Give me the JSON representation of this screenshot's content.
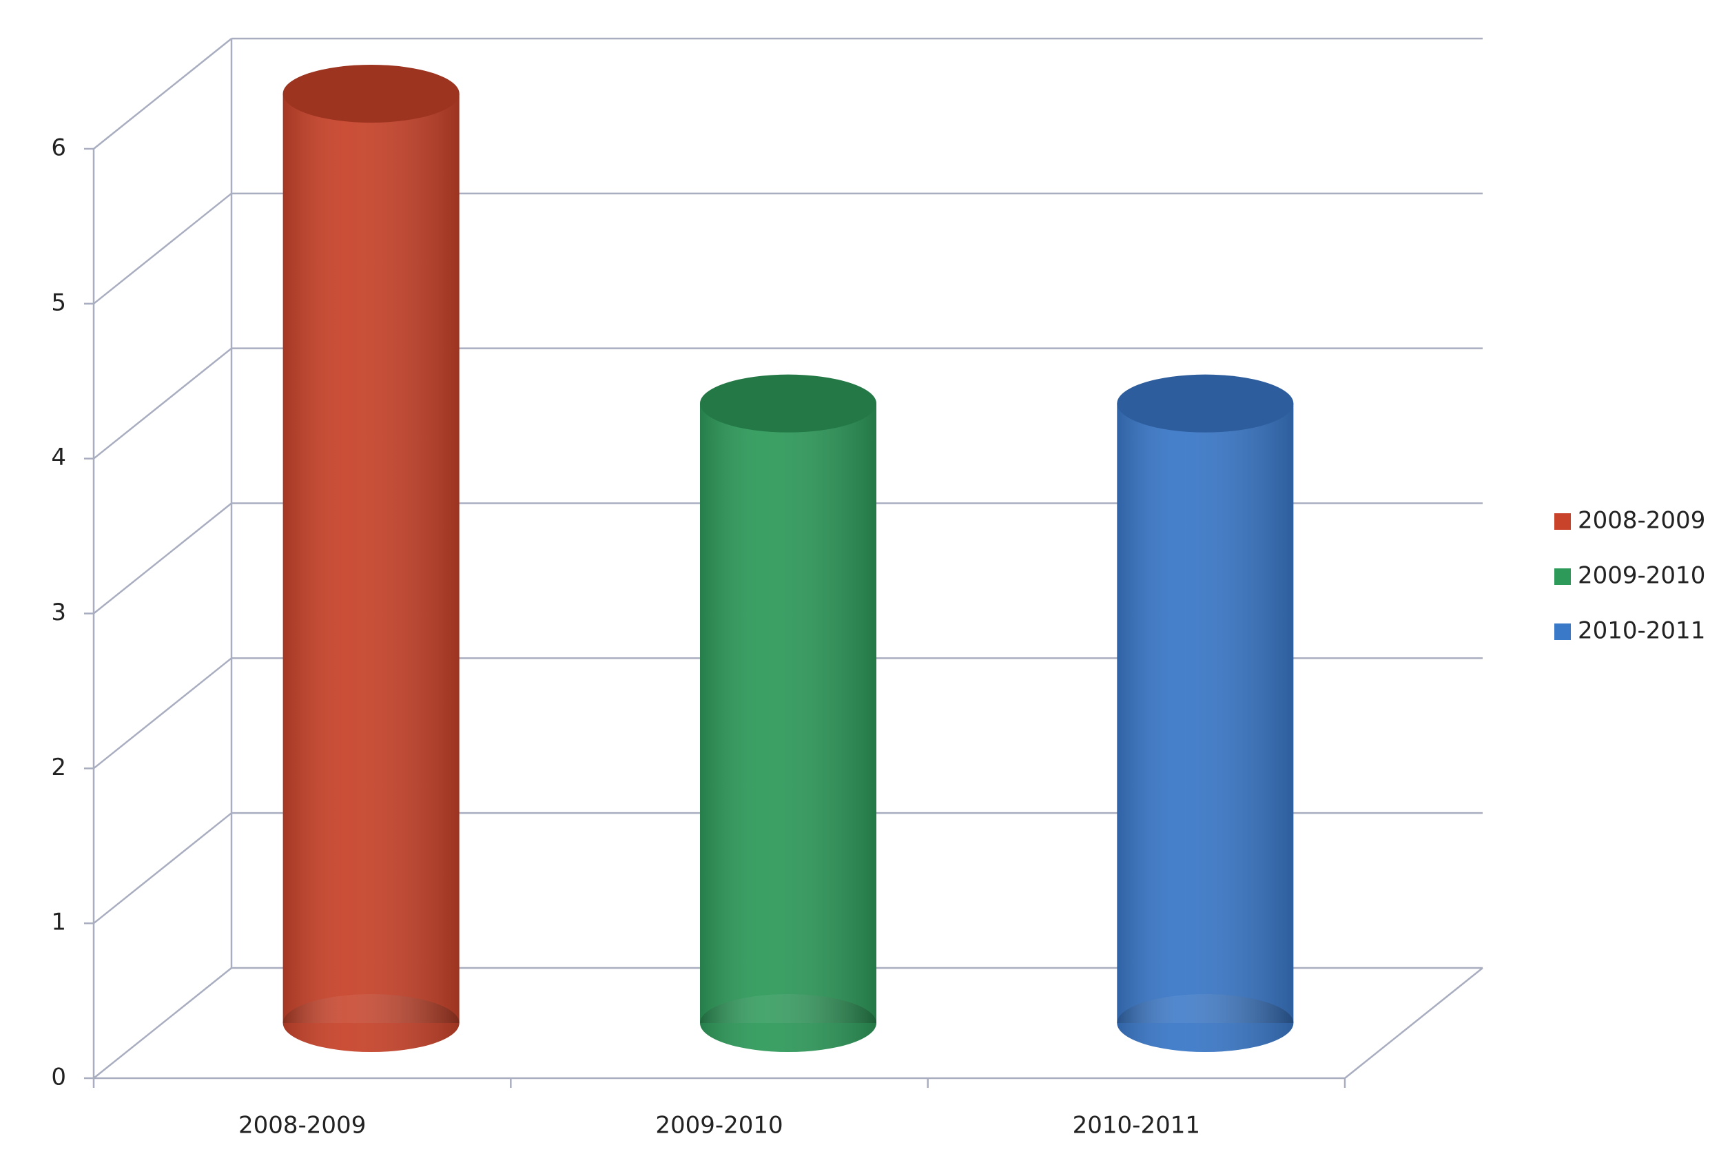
{
  "chart_data": {
    "type": "cylinder-bar",
    "categories": [
      "2008-2009",
      "2009-2010",
      "2010-2011"
    ],
    "series": [
      {
        "name": "2008-2009",
        "color": "#c8432a",
        "values": [
          6,
          null,
          null
        ]
      },
      {
        "name": "2009-2010",
        "color": "#2e9a5a",
        "values": [
          null,
          4,
          null
        ]
      },
      {
        "name": "2010-2011",
        "color": "#3a78c8",
        "values": [
          null,
          null,
          4
        ]
      }
    ],
    "ylim": [
      0,
      6
    ],
    "yticks": [
      0,
      1,
      2,
      3,
      4,
      5,
      6
    ],
    "grid": true,
    "legend": "right"
  }
}
